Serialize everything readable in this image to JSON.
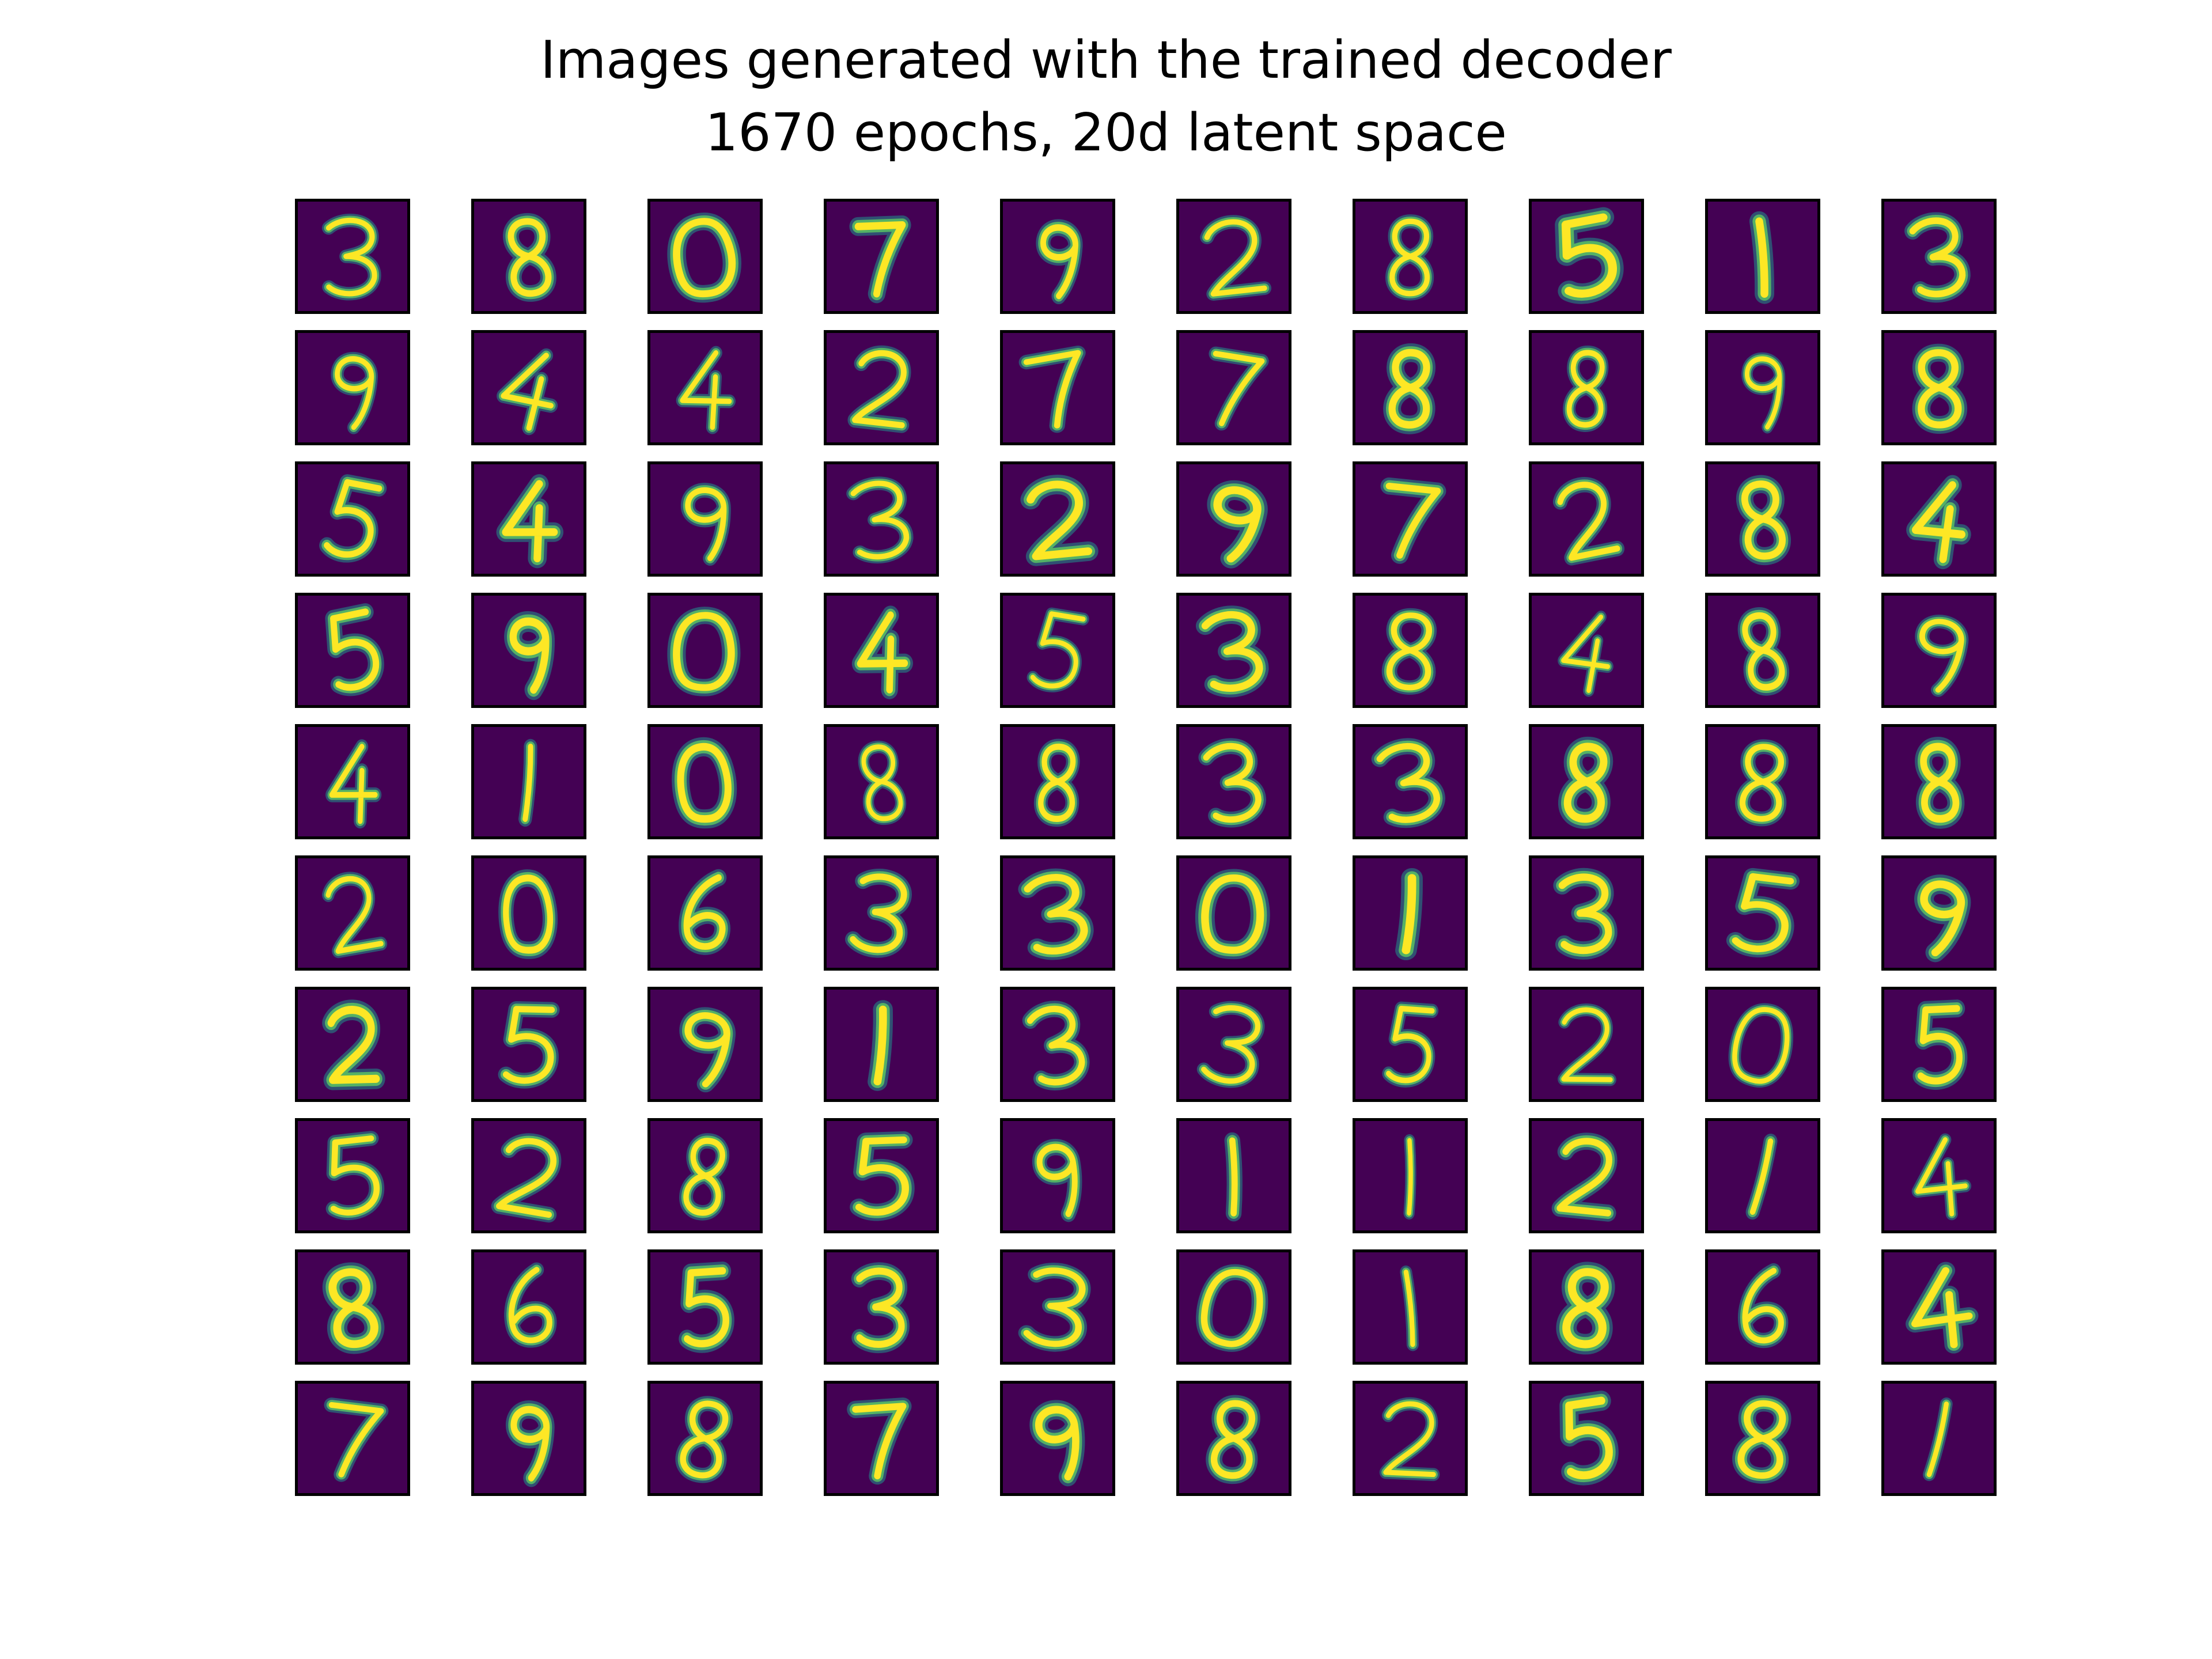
{
  "figure": {
    "title_line1": "Images generated with the trained decoder",
    "title_line2": "1670 epochs, 20d latent space"
  },
  "grid": {
    "rows": 10,
    "cols": 10,
    "background_color": "#440154",
    "digits": [
      [
        "3",
        "8",
        "0",
        "7",
        "9",
        "2",
        "8",
        "5",
        "1",
        "3"
      ],
      [
        "9",
        "4",
        "4",
        "2",
        "7",
        "7",
        "8",
        "8",
        "9",
        "8"
      ],
      [
        "5",
        "4",
        "9",
        "3",
        "2",
        "9",
        "7",
        "2",
        "8",
        "4"
      ],
      [
        "5",
        "9",
        "0",
        "4",
        "5",
        "3",
        "8",
        "4",
        "8",
        "9"
      ],
      [
        "4",
        "1",
        "0",
        "8",
        "8",
        "3",
        "3",
        "8",
        "8",
        "8"
      ],
      [
        "2",
        "0",
        "6",
        "3",
        "3",
        "0",
        "1",
        "3",
        "5",
        "9"
      ],
      [
        "2",
        "5",
        "9",
        "1",
        "3",
        "3",
        "5",
        "2",
        "0",
        "5"
      ],
      [
        "5",
        "2",
        "8",
        "5",
        "9",
        "1",
        "1",
        "2",
        "1",
        "4"
      ],
      [
        "8",
        "6",
        "5",
        "3",
        "3",
        "0",
        "1",
        "8",
        "6",
        "4"
      ],
      [
        "7",
        "9",
        "8",
        "7",
        "9",
        "8",
        "2",
        "5",
        "8",
        "1"
      ]
    ]
  }
}
